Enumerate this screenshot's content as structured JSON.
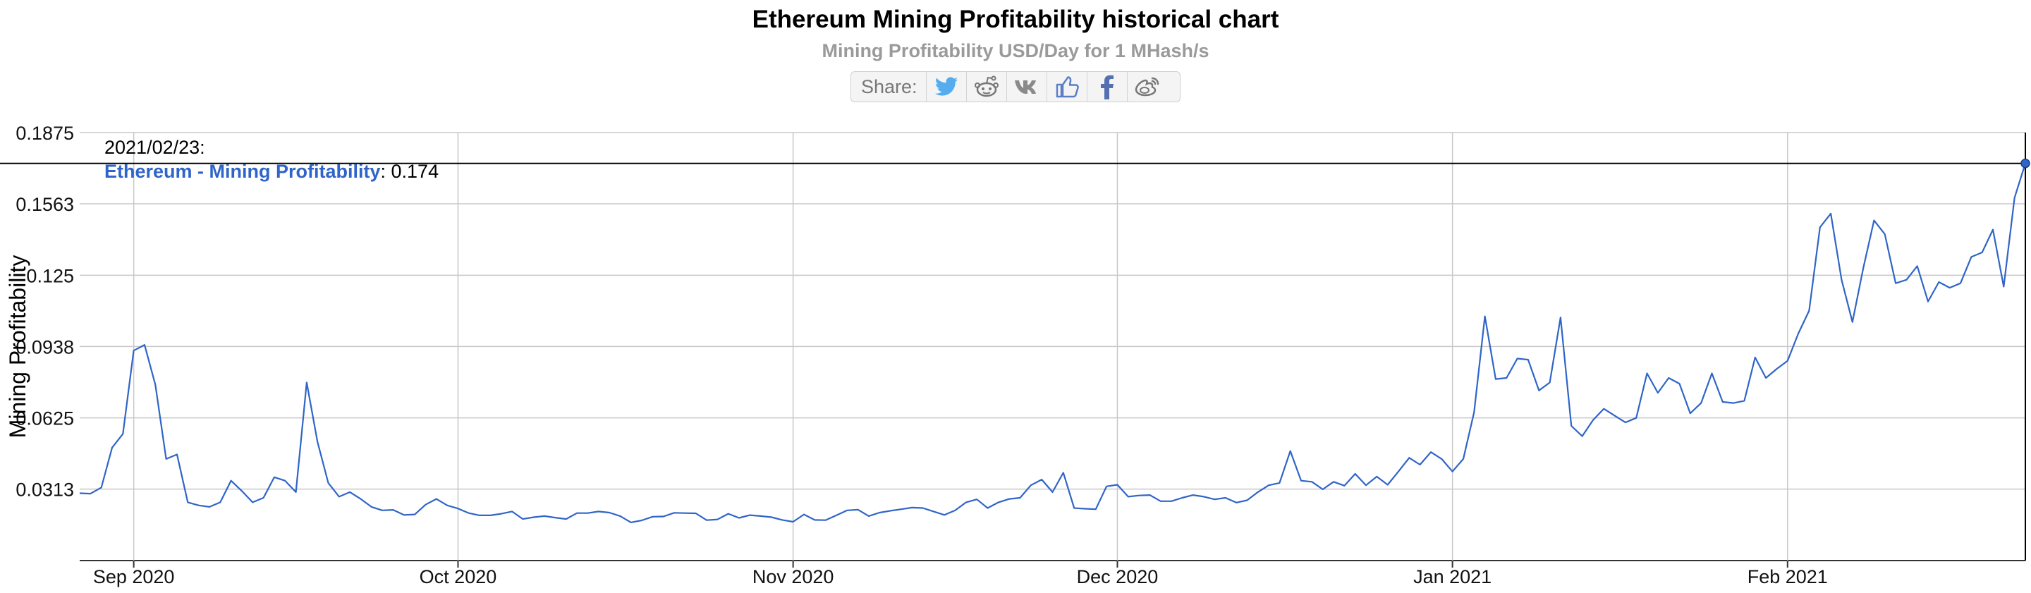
{
  "chart_data": {
    "type": "line",
    "title": "Ethereum Mining Profitability historical chart",
    "subtitle": "Mining Profitability USD/Day for 1 MHash/s",
    "ylabel": "Mining Profitability",
    "xlabel": "",
    "ylim": [
      0,
      0.1875
    ],
    "yticks": [
      0.0313,
      0.0625,
      0.0938,
      0.125,
      0.1563,
      0.1875
    ],
    "xticks": [
      {
        "date": "2020-09-01",
        "label": "Sep 2020"
      },
      {
        "date": "2020-10-01",
        "label": "Oct 2020"
      },
      {
        "date": "2020-11-01",
        "label": "Nov 2020"
      },
      {
        "date": "2020-12-01",
        "label": "Dec 2020"
      },
      {
        "date": "2021-01-01",
        "label": "Jan 2021"
      },
      {
        "date": "2021-02-01",
        "label": "Feb 2021"
      }
    ],
    "xlim": [
      "2020-08-27",
      "2021-02-23"
    ],
    "grid": true,
    "series": [
      {
        "name": "Ethereum - Mining Profitability",
        "color": "#2f65c8",
        "x_start": "2020-08-27",
        "x_step_days": 1,
        "values": [
          0.0295,
          0.0293,
          0.032,
          0.0495,
          0.0555,
          0.092,
          0.0945,
          0.077,
          0.0445,
          0.0465,
          0.0255,
          0.0242,
          0.0235,
          0.0255,
          0.035,
          0.0305,
          0.0255,
          0.0275,
          0.0365,
          0.035,
          0.03,
          0.078,
          0.052,
          0.034,
          0.028,
          0.03,
          0.027,
          0.0235,
          0.022,
          0.0222,
          0.02,
          0.0202,
          0.0245,
          0.027,
          0.0242,
          0.0228,
          0.0208,
          0.0198,
          0.0198,
          0.0205,
          0.0215,
          0.0182,
          0.019,
          0.0195,
          0.0188,
          0.0182,
          0.0208,
          0.0208,
          0.0215,
          0.021,
          0.0195,
          0.0167,
          0.0176,
          0.0192,
          0.0193,
          0.0209,
          0.0208,
          0.0207,
          0.0177,
          0.018,
          0.0205,
          0.0187,
          0.0199,
          0.0195,
          0.019,
          0.0178,
          0.017,
          0.0202,
          0.0178,
          0.0177,
          0.0198,
          0.022,
          0.0223,
          0.0195,
          0.021,
          0.0218,
          0.0225,
          0.0232,
          0.023,
          0.0215,
          0.02,
          0.022,
          0.0255,
          0.0268,
          0.023,
          0.0255,
          0.027,
          0.0275,
          0.033,
          0.0355,
          0.03,
          0.0385,
          0.023,
          0.0227,
          0.0225,
          0.0325,
          0.0332,
          0.028,
          0.0285,
          0.0287,
          0.026,
          0.026,
          0.0275,
          0.0287,
          0.028,
          0.0268,
          0.0275,
          0.0254,
          0.0264,
          0.03,
          0.033,
          0.034,
          0.048,
          0.035,
          0.0345,
          0.0312,
          0.0345,
          0.0328,
          0.038,
          0.033,
          0.0368,
          0.0332,
          0.039,
          0.045,
          0.042,
          0.0475,
          0.0445,
          0.039,
          0.0445,
          0.065,
          0.107,
          0.0795,
          0.08,
          0.0885,
          0.088,
          0.0745,
          0.078,
          0.1065,
          0.059,
          0.0545,
          0.0615,
          0.0665,
          0.0635,
          0.0605,
          0.0625,
          0.082,
          0.0735,
          0.08,
          0.0775,
          0.0645,
          0.069,
          0.082,
          0.0695,
          0.069,
          0.07,
          0.089,
          0.08,
          0.084,
          0.0875,
          0.0995,
          0.1095,
          0.146,
          0.152,
          0.123,
          0.1045,
          0.128,
          0.149,
          0.143,
          0.1215,
          0.123,
          0.129,
          0.1135,
          0.122,
          0.1195,
          0.1215,
          0.133,
          0.135,
          0.145,
          0.12,
          0.159,
          0.174
        ]
      }
    ],
    "tooltip": {
      "date": "2021/02/23:",
      "series": "Ethereum - Mining Profitability",
      "value": ": 0.174"
    }
  },
  "share": {
    "label": "Share:",
    "buttons": [
      "twitter-icon",
      "reddit-icon",
      "vk-icon",
      "like-icon",
      "facebook-icon",
      "weibo-icon"
    ]
  }
}
